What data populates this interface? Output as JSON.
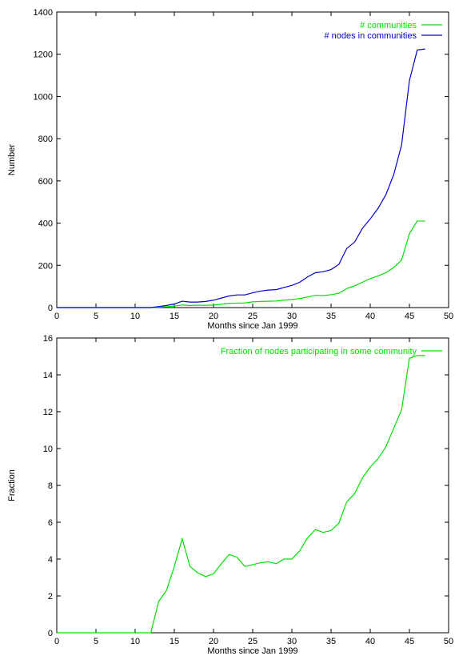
{
  "chart_data": [
    {
      "type": "line",
      "title": "",
      "xlabel": "Months since Jan 1999",
      "ylabel": "Number",
      "xlim": [
        0,
        50
      ],
      "ylim": [
        0,
        1400
      ],
      "xticks": [
        0,
        5,
        10,
        15,
        20,
        25,
        30,
        35,
        40,
        45,
        50
      ],
      "yticks": [
        0,
        200,
        400,
        600,
        800,
        1000,
        1200,
        1400
      ],
      "grid": false,
      "legend_position": "top-right",
      "x": [
        0,
        1,
        2,
        3,
        4,
        5,
        6,
        7,
        8,
        9,
        10,
        11,
        12,
        13,
        14,
        15,
        16,
        17,
        18,
        19,
        20,
        21,
        22,
        23,
        24,
        25,
        26,
        27,
        28,
        29,
        30,
        31,
        32,
        33,
        34,
        35,
        36,
        37,
        38,
        39,
        40,
        41,
        42,
        43,
        44,
        45,
        46,
        47
      ],
      "series": [
        {
          "name": "# communities",
          "color": "#00e000",
          "values": [
            0,
            0,
            0,
            0,
            0,
            0,
            0,
            0,
            0,
            0,
            0,
            0,
            0,
            2,
            4,
            7,
            12,
            10,
            11,
            11,
            12,
            16,
            20,
            21,
            22,
            27,
            29,
            30,
            31,
            35,
            38,
            43,
            50,
            58,
            57,
            61,
            68,
            90,
            103,
            120,
            137,
            150,
            165,
            190,
            225,
            350,
            410,
            410
          ]
        },
        {
          "name": "# nodes in communities",
          "color": "#0000d0",
          "values": [
            0,
            0,
            0,
            0,
            0,
            0,
            0,
            0,
            0,
            0,
            0,
            0,
            0,
            5,
            10,
            17,
            30,
            26,
            26,
            29,
            35,
            45,
            55,
            60,
            60,
            70,
            78,
            83,
            85,
            95,
            105,
            120,
            145,
            165,
            170,
            180,
            205,
            280,
            310,
            375,
            420,
            470,
            535,
            630,
            770,
            1075,
            1220,
            1225
          ]
        }
      ]
    },
    {
      "type": "line",
      "title": "",
      "xlabel": "Months since Jan 1999",
      "ylabel": "Fraction",
      "xlim": [
        0,
        50
      ],
      "ylim": [
        0,
        16
      ],
      "xticks": [
        0,
        5,
        10,
        15,
        20,
        25,
        30,
        35,
        40,
        45,
        50
      ],
      "yticks": [
        0,
        2,
        4,
        6,
        8,
        10,
        12,
        14,
        16
      ],
      "grid": false,
      "legend_position": "top-right",
      "x": [
        0,
        1,
        2,
        3,
        4,
        5,
        6,
        7,
        8,
        9,
        10,
        11,
        12,
        13,
        14,
        15,
        16,
        17,
        18,
        19,
        20,
        21,
        22,
        23,
        24,
        25,
        26,
        27,
        28,
        29,
        30,
        31,
        32,
        33,
        34,
        35,
        36,
        37,
        38,
        39,
        40,
        41,
        42,
        43,
        44,
        45,
        46,
        47
      ],
      "series": [
        {
          "name": "Fraction of nodes participating in some community",
          "color": "#00e000",
          "values": [
            0,
            0,
            0,
            0,
            0,
            0,
            0,
            0,
            0,
            0,
            0,
            0,
            0,
            1.7,
            2.3,
            3.6,
            5.1,
            3.6,
            3.25,
            3.05,
            3.2,
            3.75,
            4.25,
            4.1,
            3.6,
            3.7,
            3.8,
            3.85,
            3.75,
            4.0,
            4.0,
            4.45,
            5.15,
            5.6,
            5.45,
            5.55,
            5.95,
            7.1,
            7.55,
            8.4,
            9.0,
            9.45,
            10.1,
            11.1,
            12.1,
            14.9,
            15.05,
            15.05
          ]
        }
      ]
    }
  ]
}
